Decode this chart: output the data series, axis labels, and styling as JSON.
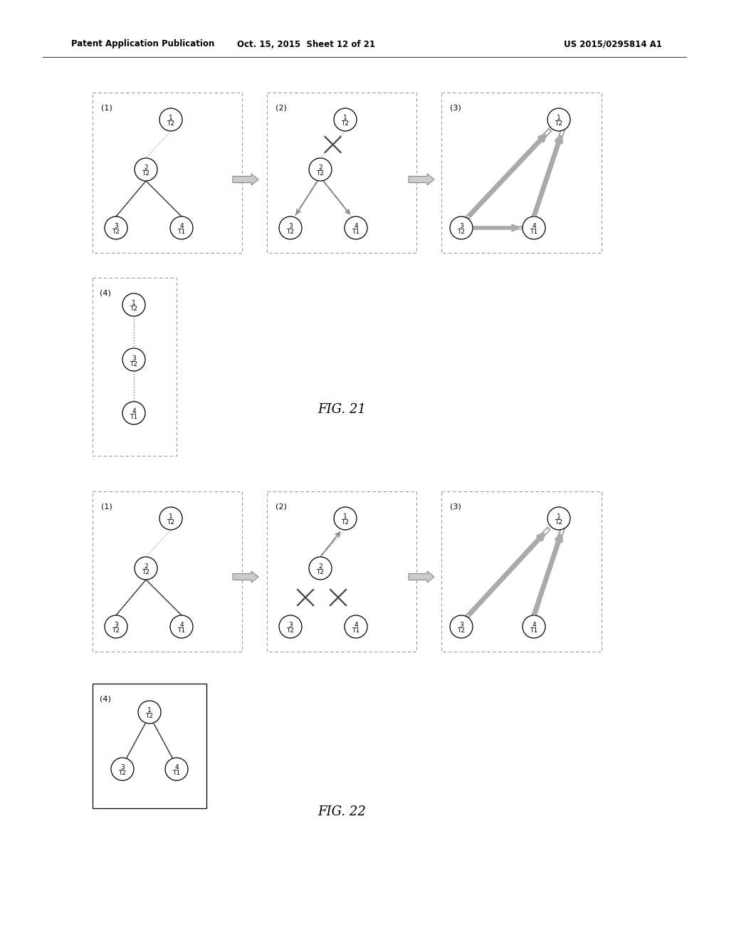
{
  "header_left": "Patent Application Publication",
  "header_mid": "Oct. 15, 2015  Sheet 12 of 21",
  "header_right": "US 2015/0295814 A1",
  "fig21_label": "FIG. 21",
  "fig22_label": "FIG. 22",
  "background_color": "#ffffff"
}
